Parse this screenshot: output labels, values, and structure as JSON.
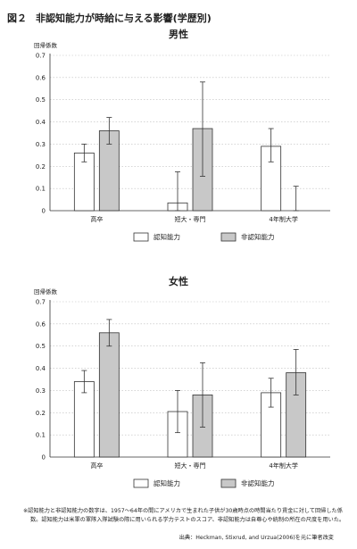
{
  "figure": {
    "number": "図２",
    "title": "非認知能力が時給に与える影響(学歴別)"
  },
  "chart_data": [
    {
      "type": "bar",
      "title": "男性",
      "ylabel": "回帰係数",
      "ylim": [
        0,
        0.7
      ],
      "yticks": [
        "0",
        "0.1",
        "0.2",
        "0.3",
        "0.4",
        "0.5",
        "0.6",
        "0.7"
      ],
      "categories": [
        "高卒",
        "短大・専門",
        "4年制大学"
      ],
      "series": [
        {
          "name": "認知能力",
          "values": [
            0.26,
            0.035,
            0.29
          ],
          "err_low": [
            0.22,
            0.0,
            0.22
          ],
          "err_high": [
            0.3,
            0.175,
            0.37
          ],
          "color": "#ffffff"
        },
        {
          "name": "非認知能力",
          "values": [
            0.36,
            0.37,
            0.0
          ],
          "err_low": [
            0.3,
            0.155,
            0.0
          ],
          "err_high": [
            0.42,
            0.58,
            0.11
          ],
          "color": "#c8c8c8"
        }
      ],
      "grid": true,
      "legend": "bottom"
    },
    {
      "type": "bar",
      "title": "女性",
      "ylabel": "回帰係数",
      "ylim": [
        0,
        0.7
      ],
      "yticks": [
        "0",
        "0.1",
        "0.2",
        "0.3",
        "0.4",
        "0.5",
        "0.6",
        "0.7"
      ],
      "categories": [
        "高卒",
        "短大・専門",
        "4年制大学"
      ],
      "series": [
        {
          "name": "認知能力",
          "values": [
            0.34,
            0.205,
            0.29
          ],
          "err_low": [
            0.29,
            0.11,
            0.225
          ],
          "err_high": [
            0.39,
            0.3,
            0.355
          ],
          "color": "#ffffff"
        },
        {
          "name": "非認知能力",
          "values": [
            0.56,
            0.28,
            0.38
          ],
          "err_low": [
            0.5,
            0.135,
            0.28
          ],
          "err_high": [
            0.62,
            0.425,
            0.485
          ],
          "color": "#c8c8c8"
        }
      ],
      "grid": true,
      "legend": "bottom"
    }
  ],
  "note": "※認知能力と非認知能力の数字は、1957～64年の間にアメリカで生まれた子供が30歳時点の時間当たり賃金に対して回帰した係数。認知能力は米軍の軍隊入隊試験の際に用いられる学力テストのスコア、非認知能力は自尊心や統制の所在の尺度を用いた。",
  "source": "出典：Heckman, Stixrud, and Urzua(2006)を元に筆者改変"
}
